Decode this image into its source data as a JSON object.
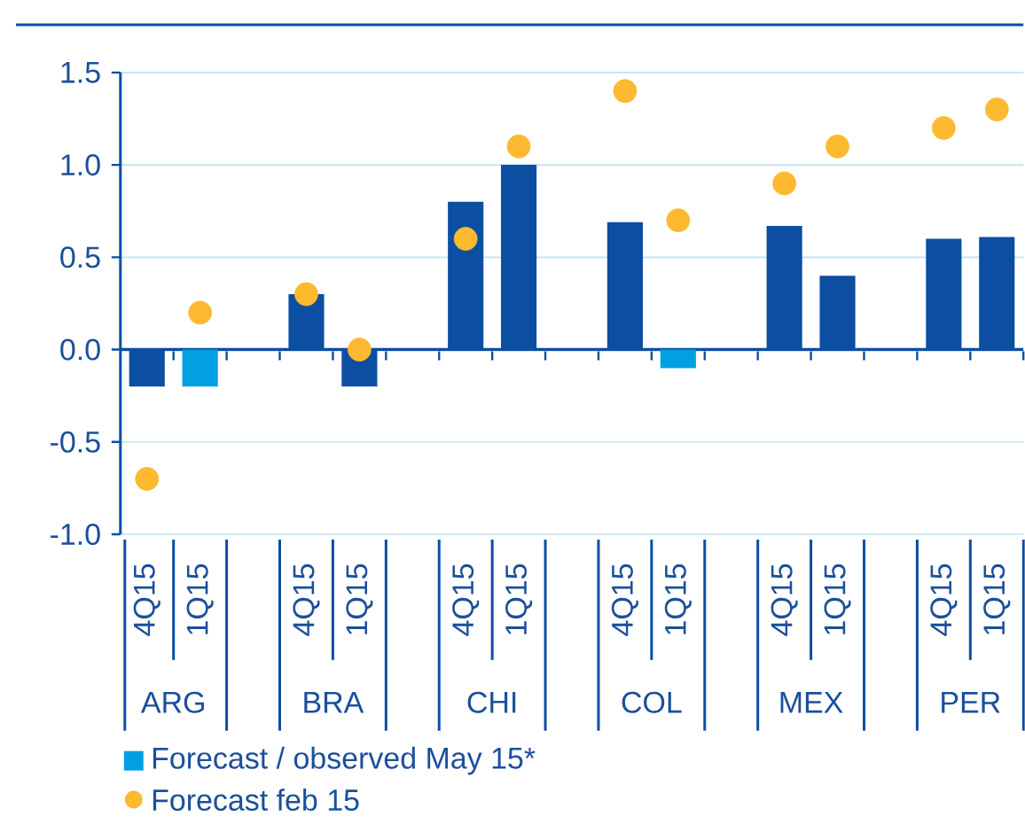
{
  "chart_data": {
    "type": "bar",
    "categories": [
      "4Q15",
      "1Q15",
      null,
      "4Q15",
      "1Q15",
      null,
      "4Q15",
      "1Q15",
      null,
      "4Q15",
      "1Q15",
      null,
      "4Q15",
      "1Q15",
      null,
      "4Q15",
      "1Q15"
    ],
    "series": [
      {
        "name": "Forecast / observed May 15*",
        "color": "#00a0e3",
        "colors": [
          "#0b4ea2",
          "#00a0e3",
          null,
          "#0b4ea2",
          "#0b4ea2",
          null,
          "#0b4ea2",
          "#0b4ea2",
          null,
          "#0b4ea2",
          "#00a0e3",
          null,
          "#0b4ea2",
          "#0b4ea2",
          null,
          "#0b4ea2",
          "#0b4ea2"
        ],
        "values": [
          -0.2,
          -0.2,
          null,
          0.3,
          -0.2,
          null,
          0.8,
          1.0,
          null,
          0.69,
          -0.1,
          null,
          0.67,
          0.4,
          null,
          0.6,
          0.61
        ]
      },
      {
        "name": "Forecast feb 15",
        "type": "scatter",
        "color": "#fdb92f",
        "marker": "circle",
        "values": [
          -0.7,
          0.2,
          null,
          0.3,
          0.0,
          null,
          0.6,
          1.1,
          null,
          1.4,
          0.7,
          null,
          0.9,
          1.1,
          null,
          1.2,
          1.3
        ]
      }
    ],
    "annotations": [
      "ARG",
      "BRA",
      "CHI",
      "COL",
      "MEX",
      "PER"
    ],
    "ylim": [
      -1.0,
      1.5
    ],
    "yticks": [
      {
        "value": -1.0,
        "label": "-1.0"
      },
      {
        "value": -0.5,
        "label": "-0.5"
      },
      {
        "value": 0.0,
        "label": "0.0"
      },
      {
        "value": 0.5,
        "label": "0.5"
      },
      {
        "value": 1.0,
        "label": "1.0"
      },
      {
        "value": 1.5,
        "label": "1.5"
      }
    ],
    "ref_lines": [
      {
        "axis": "y",
        "value": 0,
        "color": "#0b4ea2"
      }
    ],
    "grid": "y",
    "legend": "bottom"
  }
}
